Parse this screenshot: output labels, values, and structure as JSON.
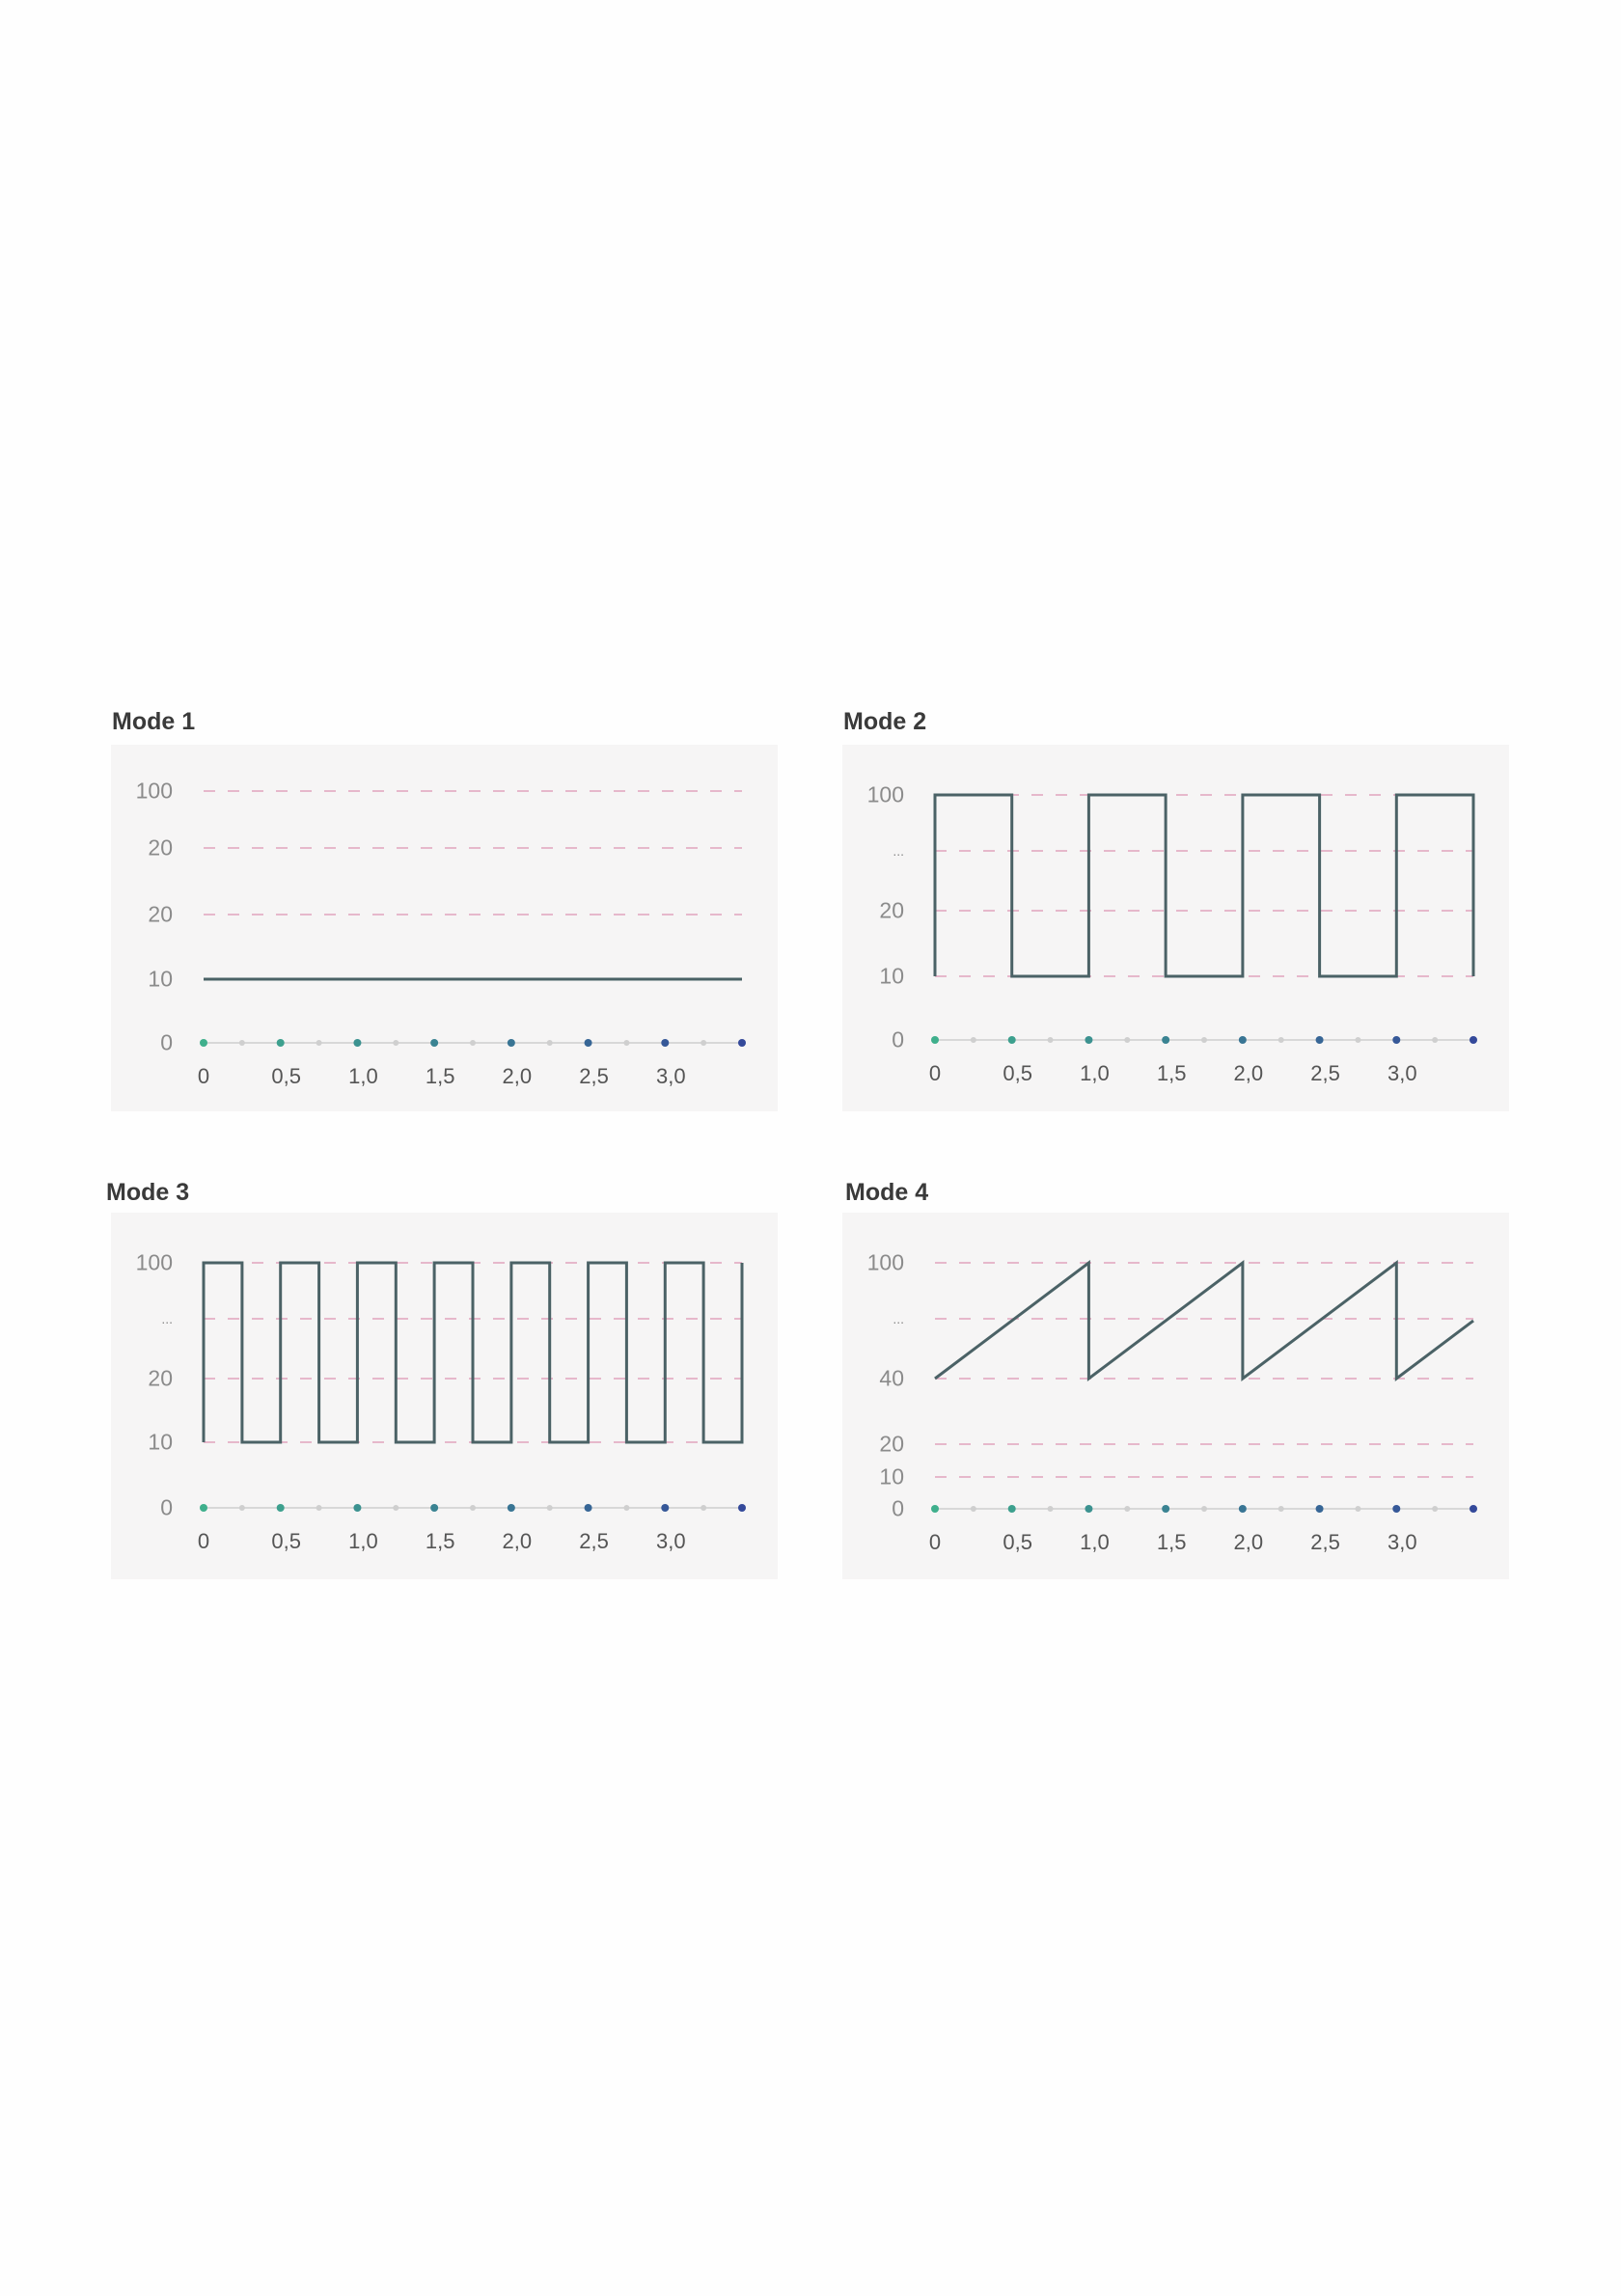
{
  "colors": {
    "line": "#4b6266",
    "grid": "#e0a4bd",
    "axis": "#d8d8d8",
    "minor_dot": "#cfcfcf",
    "dot_start": "#3faf8c",
    "dot_end": "#34499a",
    "panel": "#f6f5f5"
  },
  "chart_data": [
    {
      "type": "line",
      "title": "Mode 1",
      "x_ticks": [
        "0",
        "0,5",
        "1,0",
        "1,5",
        "2,0",
        "2,5",
        "3,0"
      ],
      "xlim": [
        0,
        3.5
      ],
      "y_ticks": [
        "100",
        "20",
        "20",
        "10",
        "0"
      ],
      "grid": "dashed",
      "series": [
        {
          "x": [
            0,
            3.5
          ],
          "y": [
            10,
            10
          ]
        }
      ]
    },
    {
      "type": "line",
      "title": "Mode 2",
      "x_ticks": [
        "0",
        "0,5",
        "1,0",
        "1,5",
        "2,0",
        "2,5",
        "3,0"
      ],
      "xlim": [
        0,
        3.5
      ],
      "y_ticks": [
        "100",
        "...",
        "20",
        "10",
        "0"
      ],
      "grid": "dashed",
      "series": [
        {
          "x": [
            0,
            0,
            0.5,
            0.5,
            1,
            1,
            1.5,
            1.5,
            2,
            2,
            2.5,
            2.5,
            3,
            3,
            3.5,
            3.5
          ],
          "y": [
            10,
            100,
            100,
            10,
            10,
            100,
            100,
            10,
            10,
            100,
            100,
            10,
            10,
            100,
            100,
            10
          ]
        }
      ]
    },
    {
      "type": "line",
      "title": "Mode 3",
      "x_ticks": [
        "0",
        "0,5",
        "1,0",
        "1,5",
        "2,0",
        "2,5",
        "3,0"
      ],
      "xlim": [
        0,
        3.5
      ],
      "y_ticks": [
        "100",
        "...",
        "20",
        "10",
        "0"
      ],
      "grid": "dashed",
      "series": [
        {
          "x": [
            0,
            0,
            0.25,
            0.25,
            0.5,
            0.5,
            0.75,
            0.75,
            1,
            1,
            1.25,
            1.25,
            1.5,
            1.5,
            1.75,
            1.75,
            2,
            2,
            2.25,
            2.25,
            2.5,
            2.5,
            2.75,
            2.75,
            3,
            3,
            3.25,
            3.25,
            3.5,
            3.5
          ],
          "y": [
            10,
            100,
            100,
            10,
            10,
            100,
            100,
            10,
            10,
            100,
            100,
            10,
            10,
            100,
            100,
            10,
            10,
            100,
            100,
            10,
            10,
            100,
            100,
            10,
            10,
            100,
            100,
            10,
            10,
            100
          ]
        }
      ]
    },
    {
      "type": "line",
      "title": "Mode 4",
      "x_ticks": [
        "0",
        "0,5",
        "1,0",
        "1,5",
        "2,0",
        "2,5",
        "3,0"
      ],
      "xlim": [
        0,
        3.5
      ],
      "y_ticks": [
        "100",
        "...",
        "40",
        "20",
        "10",
        "0"
      ],
      "grid": "dashed",
      "series": [
        {
          "x": [
            0,
            1,
            1,
            2,
            2,
            3,
            3,
            3.5
          ],
          "y": [
            40,
            100,
            40,
            100,
            40,
            100,
            40,
            70
          ]
        }
      ]
    }
  ]
}
